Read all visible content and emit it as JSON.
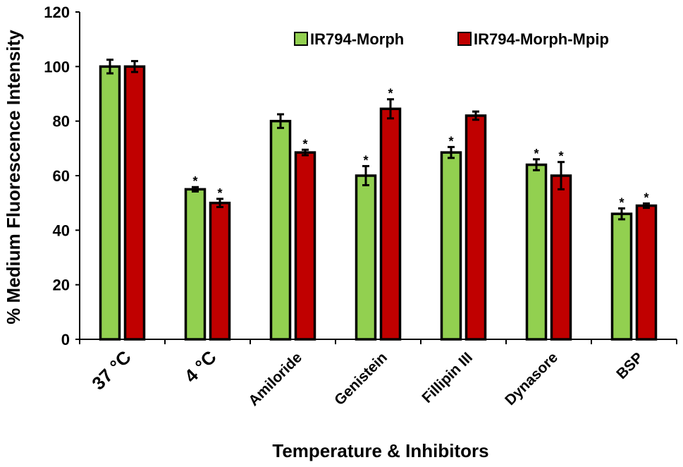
{
  "chart_data": {
    "type": "bar",
    "title": "",
    "xlabel": "Temperature & Inhibitors",
    "ylabel": "% Medium Fluorescence Intensity",
    "ylim": [
      0,
      120
    ],
    "yticks": [
      "0",
      "20",
      "40",
      "60",
      "80",
      "100",
      "120"
    ],
    "categories": [
      "37 °C",
      "4 °C",
      "Amiloride",
      "Genistein",
      "Fillipin III",
      "Dynasore",
      "BSP"
    ],
    "legend_position": "top-right",
    "significance_marker": "*",
    "series": [
      {
        "name": "IR794-Morph",
        "color": "#92d050",
        "values": [
          100,
          55,
          80,
          60,
          68.5,
          64,
          46
        ],
        "errors": [
          2.5,
          0.8,
          2.5,
          3.5,
          2,
          2,
          2
        ],
        "significant": [
          false,
          true,
          false,
          true,
          true,
          true,
          true
        ]
      },
      {
        "name": "IR794-Morph-Mpip",
        "color": "#c00000",
        "values": [
          100,
          50,
          68.5,
          84.5,
          82,
          60,
          49
        ],
        "errors": [
          2,
          1.5,
          1,
          3.5,
          1.5,
          5,
          0.8
        ],
        "significant": [
          false,
          true,
          true,
          true,
          false,
          true,
          true
        ]
      }
    ]
  }
}
